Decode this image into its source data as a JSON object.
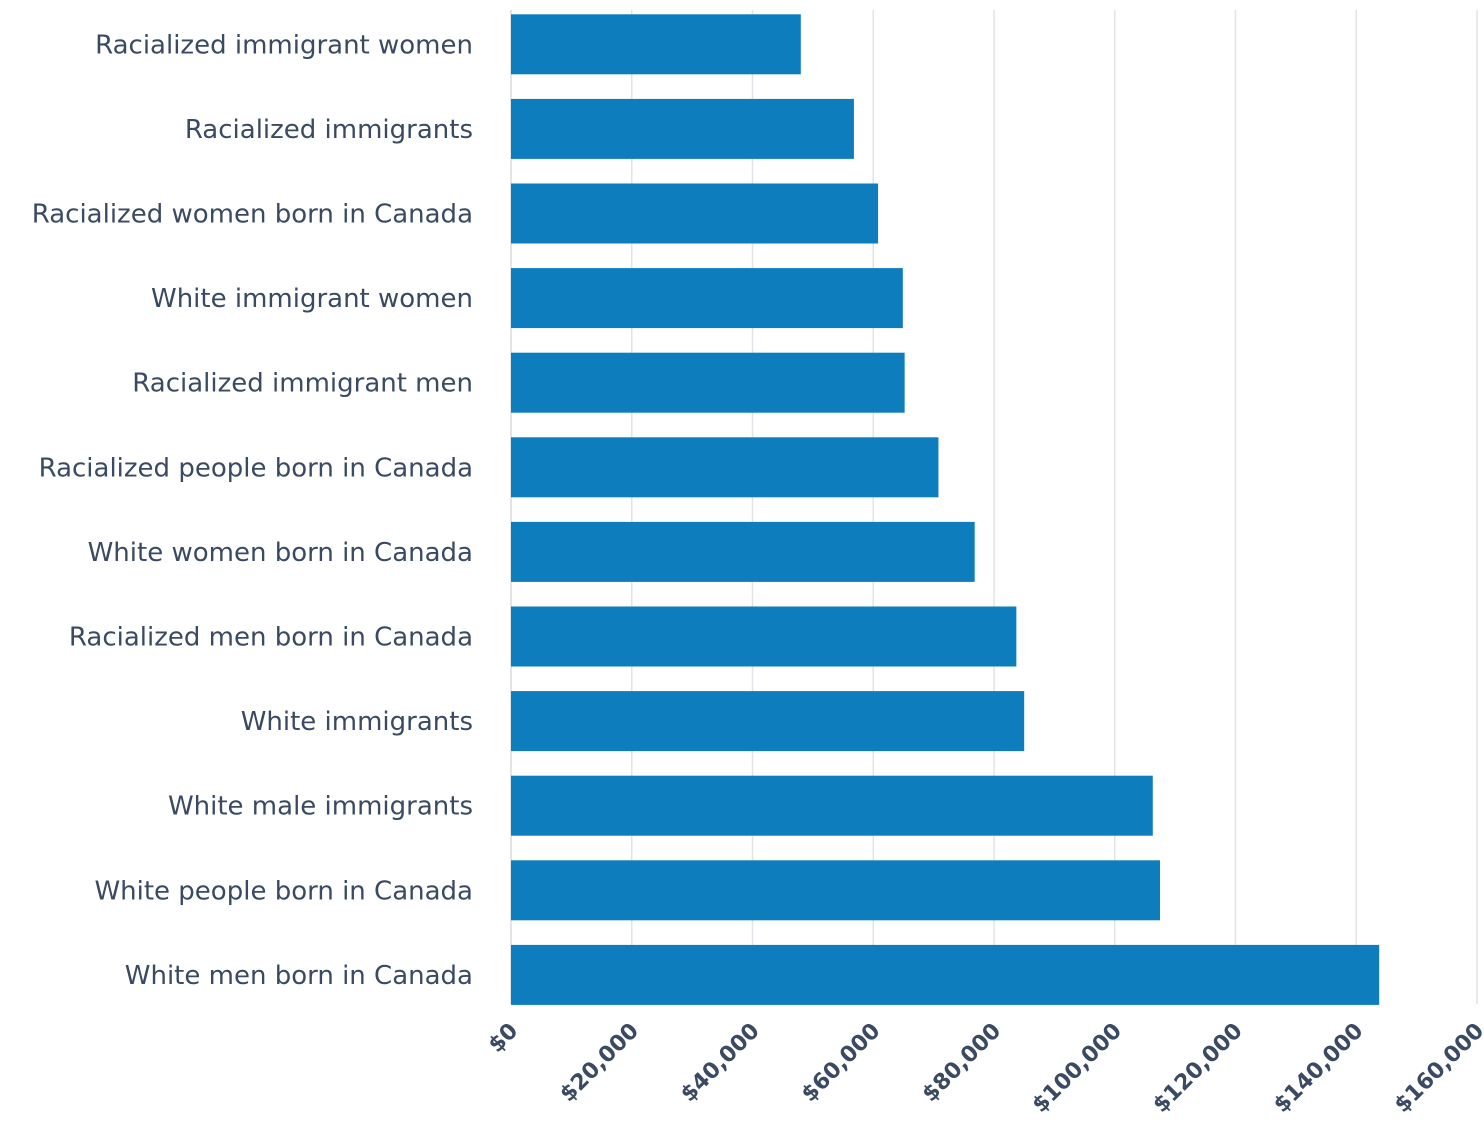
{
  "chart_data": {
    "type": "bar",
    "orientation": "horizontal",
    "title": "",
    "xlabel": "",
    "ylabel": "",
    "categories": [
      "Racialized immigrant women",
      "Racialized immigrants",
      "Racialized women born in Canada",
      "White immigrant women",
      "Racialized immigrant men",
      "Racialized people born in Canada",
      "White women born in Canada",
      "Racialized men born in Canada",
      "White immigrants",
      "White male immigrants",
      "White people born in Canada",
      "White men born in Canada"
    ],
    "values": [
      48000,
      56800,
      60800,
      64900,
      65200,
      70800,
      76800,
      83700,
      85000,
      106300,
      107500,
      143800
    ],
    "xlim": [
      0,
      160000
    ],
    "xticks": [
      0,
      20000,
      40000,
      60000,
      80000,
      100000,
      120000,
      140000,
      160000
    ],
    "xtick_labels": [
      "$0",
      "$20,000",
      "$40,000",
      "$60,000",
      "$80,000",
      "$100,000",
      "$120,000",
      "$140,000",
      "$160,000"
    ],
    "grid": true,
    "legend": "none",
    "bar_color": "#0e7dbd"
  }
}
